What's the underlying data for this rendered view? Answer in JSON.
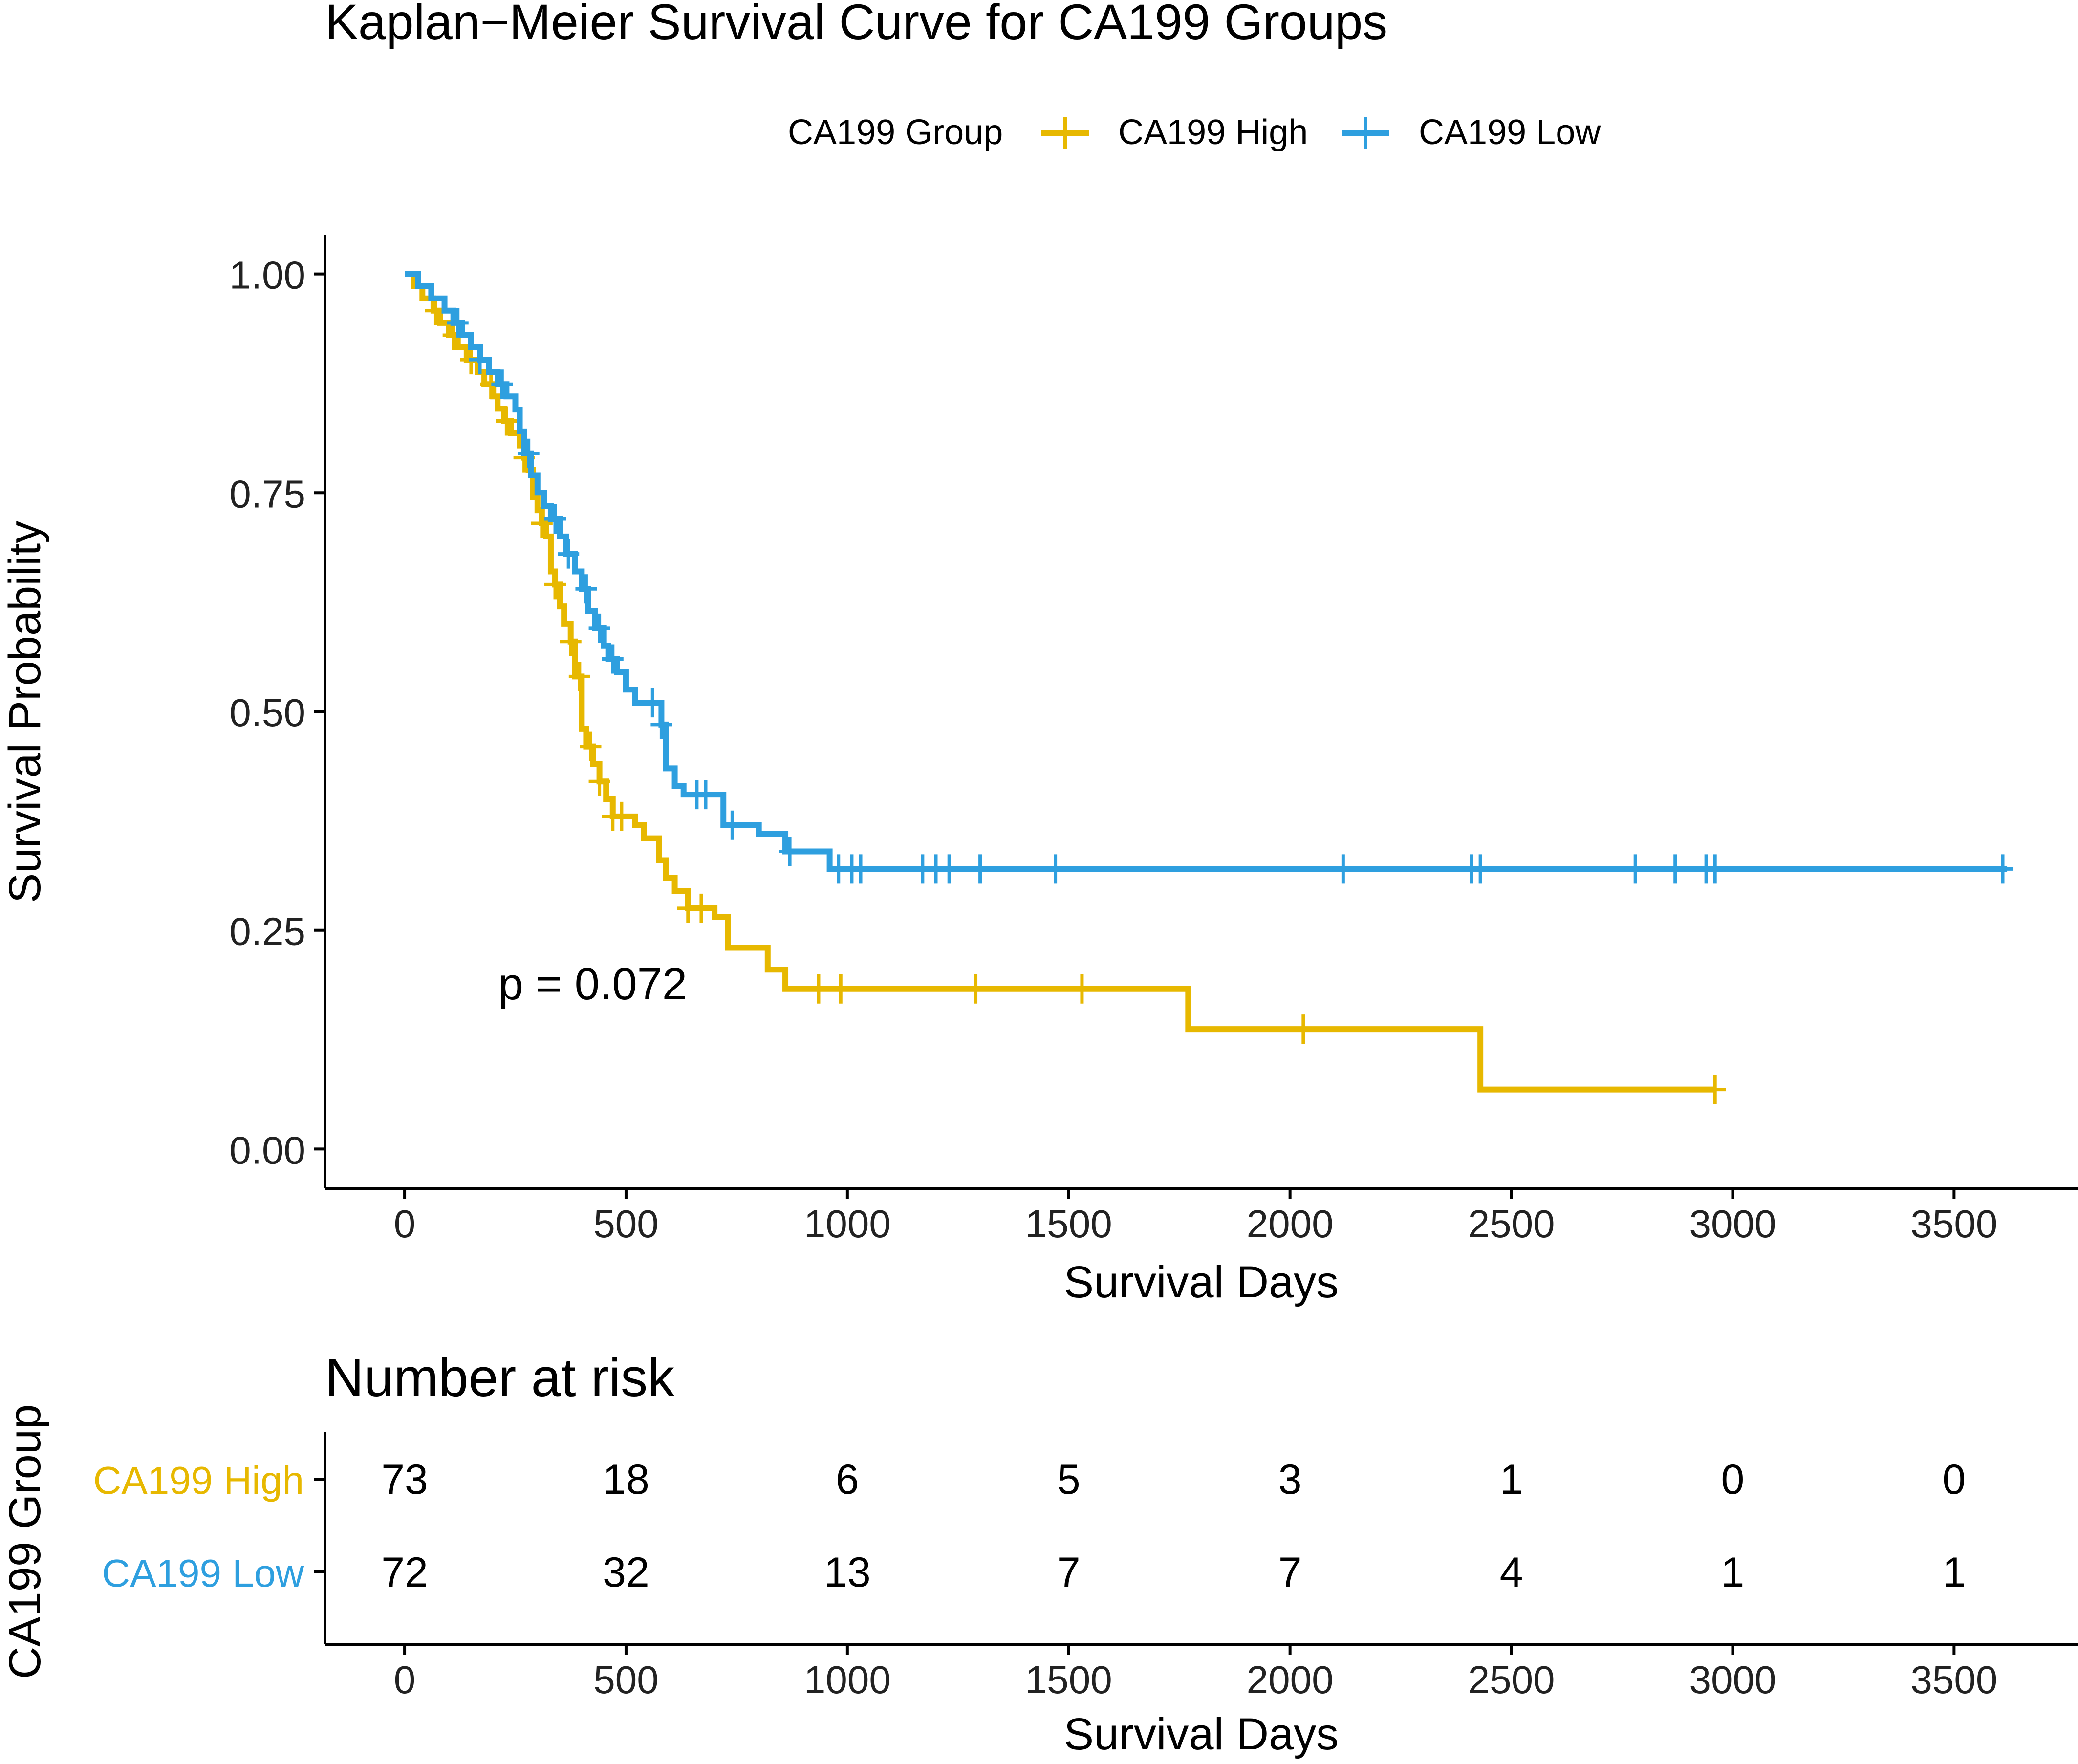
{
  "chart_data": {
    "type": "line",
    "subtype": "kaplan-meier-step",
    "title": "Kaplan−Meier Survival Curve for CA199 Groups",
    "xlabel": "Survival Days",
    "ylabel": "Survival Probability",
    "xlim": [
      -180,
      3780
    ],
    "ylim": [
      -0.045,
      1.045
    ],
    "x_ticks": [
      0,
      500,
      1000,
      1500,
      2000,
      2500,
      3000,
      3500
    ],
    "x_tick_labels": [
      "0",
      "500",
      "1000",
      "1500",
      "2000",
      "2500",
      "3000",
      "3500"
    ],
    "y_ticks": [
      0.0,
      0.25,
      0.5,
      0.75,
      1.0
    ],
    "y_tick_labels": [
      "0.00",
      "0.25",
      "0.50",
      "0.75",
      "1.00"
    ],
    "grid": false,
    "legend": {
      "title": "CA199 Group",
      "position": "top",
      "entries": [
        "CA199 High",
        "CA199 Low"
      ]
    },
    "annotations": [
      {
        "text": "p = 0.072",
        "x": 300,
        "y": 0.19
      }
    ],
    "series": [
      {
        "name": "CA199 High",
        "color": "#E7B800",
        "steps": [
          [
            0,
            1.0
          ],
          [
            20,
            0.986
          ],
          [
            40,
            0.972
          ],
          [
            65,
            0.958
          ],
          [
            80,
            0.944
          ],
          [
            100,
            0.93
          ],
          [
            120,
            0.916
          ],
          [
            140,
            0.902
          ],
          [
            165,
            0.888
          ],
          [
            180,
            0.874
          ],
          [
            200,
            0.86
          ],
          [
            210,
            0.846
          ],
          [
            225,
            0.832
          ],
          [
            240,
            0.818
          ],
          [
            260,
            0.804
          ],
          [
            270,
            0.79
          ],
          [
            280,
            0.776
          ],
          [
            290,
            0.745
          ],
          [
            300,
            0.73
          ],
          [
            310,
            0.715
          ],
          [
            320,
            0.7
          ],
          [
            330,
            0.66
          ],
          [
            340,
            0.645
          ],
          [
            350,
            0.62
          ],
          [
            360,
            0.6
          ],
          [
            375,
            0.58
          ],
          [
            385,
            0.54
          ],
          [
            400,
            0.48
          ],
          [
            410,
            0.46
          ],
          [
            425,
            0.44
          ],
          [
            440,
            0.42
          ],
          [
            455,
            0.4
          ],
          [
            470,
            0.38
          ],
          [
            520,
            0.37
          ],
          [
            540,
            0.355
          ],
          [
            575,
            0.33
          ],
          [
            590,
            0.31
          ],
          [
            610,
            0.295
          ],
          [
            640,
            0.275
          ],
          [
            700,
            0.265
          ],
          [
            730,
            0.23
          ],
          [
            820,
            0.205
          ],
          [
            860,
            0.183
          ],
          [
            1770,
            0.137
          ],
          [
            2430,
            0.068
          ]
        ],
        "end_x": 2960,
        "censor_times": [
          70,
          110,
          150,
          195,
          230,
          270,
          310,
          340,
          375,
          395,
          420,
          440,
          470,
          490,
          640,
          670,
          935,
          985,
          1290,
          1530,
          2030,
          2960
        ]
      },
      {
        "name": "CA199 Low",
        "color": "#2E9FDF",
        "steps": [
          [
            0,
            1.0
          ],
          [
            30,
            0.986
          ],
          [
            60,
            0.972
          ],
          [
            90,
            0.958
          ],
          [
            110,
            0.944
          ],
          [
            130,
            0.93
          ],
          [
            150,
            0.916
          ],
          [
            170,
            0.902
          ],
          [
            190,
            0.888
          ],
          [
            210,
            0.874
          ],
          [
            230,
            0.86
          ],
          [
            250,
            0.845
          ],
          [
            260,
            0.82
          ],
          [
            270,
            0.795
          ],
          [
            285,
            0.77
          ],
          [
            300,
            0.75
          ],
          [
            315,
            0.735
          ],
          [
            330,
            0.72
          ],
          [
            350,
            0.7
          ],
          [
            365,
            0.68
          ],
          [
            385,
            0.66
          ],
          [
            400,
            0.64
          ],
          [
            415,
            0.615
          ],
          [
            430,
            0.595
          ],
          [
            450,
            0.575
          ],
          [
            460,
            0.56
          ],
          [
            480,
            0.545
          ],
          [
            500,
            0.525
          ],
          [
            520,
            0.51
          ],
          [
            580,
            0.485
          ],
          [
            590,
            0.435
          ],
          [
            610,
            0.415
          ],
          [
            630,
            0.405
          ],
          [
            720,
            0.37
          ],
          [
            800,
            0.36
          ],
          [
            860,
            0.34
          ],
          [
            960,
            0.32
          ]
        ],
        "end_x": 3620,
        "censor_times": [
          120,
          170,
          220,
          280,
          340,
          370,
          410,
          440,
          470,
          560,
          580,
          660,
          680,
          740,
          870,
          980,
          1010,
          1030,
          1170,
          1200,
          1230,
          1300,
          1470,
          2120,
          2410,
          2430,
          2780,
          2870,
          2940,
          2960,
          3610
        ]
      }
    ],
    "risk_table": {
      "title": "Number at risk",
      "ylabel": "CA199 Group",
      "xlabel": "Survival Days",
      "x_ticks": [
        0,
        500,
        1000,
        1500,
        2000,
        2500,
        3000,
        3500
      ],
      "x_tick_labels": [
        "0",
        "500",
        "1000",
        "1500",
        "2000",
        "2500",
        "3000",
        "3500"
      ],
      "rows": [
        {
          "group": "CA199 High",
          "color": "#E7B800",
          "values": [
            "73",
            "18",
            "6",
            "5",
            "3",
            "1",
            "0",
            "0"
          ]
        },
        {
          "group": "CA199 Low",
          "color": "#2E9FDF",
          "values": [
            "72",
            "32",
            "13",
            "7",
            "7",
            "4",
            "1",
            "1"
          ]
        }
      ]
    }
  }
}
